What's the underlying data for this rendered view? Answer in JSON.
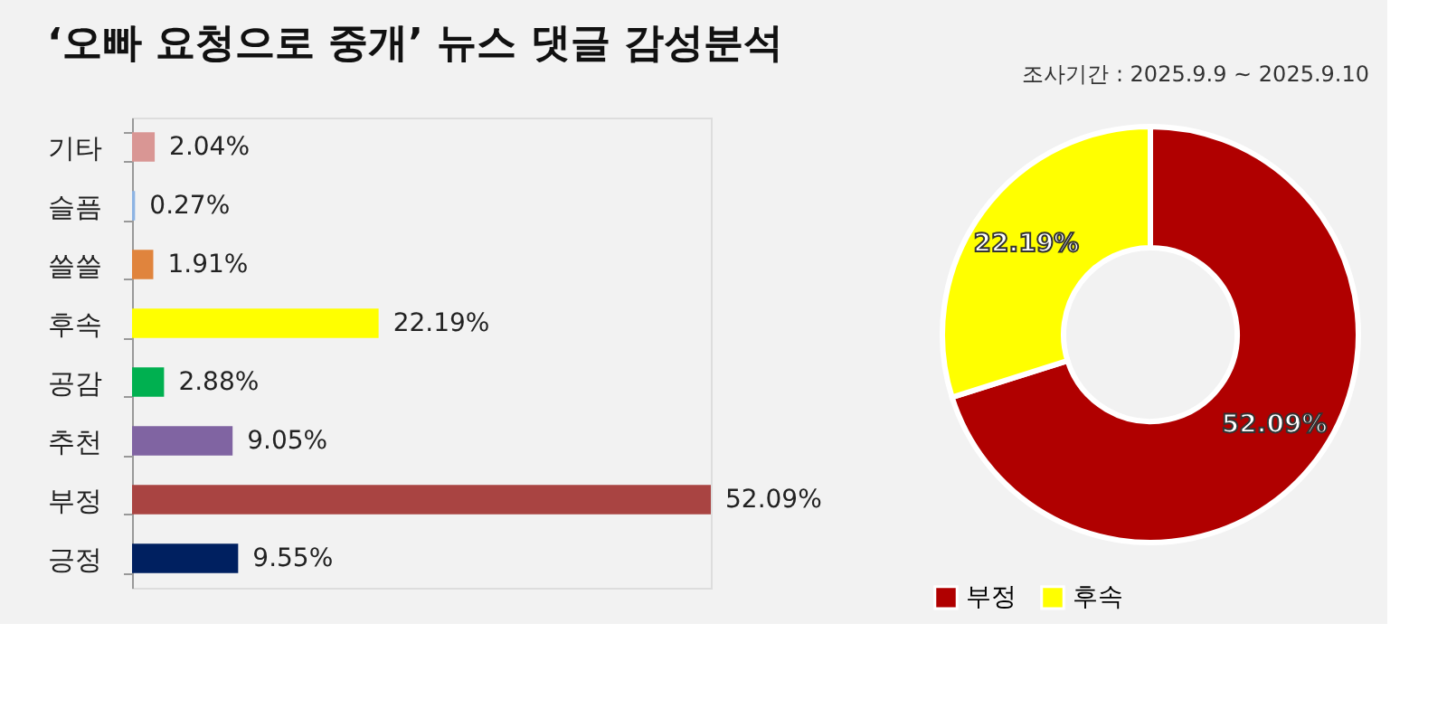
{
  "chart_data": [
    {
      "type": "bar",
      "orientation": "horizontal",
      "title": "‘오빠 요청으로 중개’ 뉴스 댓글 감성분석",
      "data_labels": true,
      "value_labels": [
        "2.04%",
        "0.27%",
        "1.91%",
        "22.19%",
        "2.88%",
        "9.05%",
        "52.09%",
        "9.55%"
      ],
      "categories": [
        "기타",
        "슬픔",
        "쓸쓸",
        "후속",
        "공감",
        "추천",
        "부정",
        "긍정"
      ],
      "values": [
        2.04,
        0.27,
        1.91,
        22.19,
        2.88,
        9.05,
        52.09,
        9.55
      ],
      "colors": [
        "#d99694",
        "#8eb4e3",
        "#e0843d",
        "#ffff00",
        "#00b050",
        "#8064a2",
        "#a94442",
        "#002060"
      ]
    },
    {
      "type": "donut",
      "annotations": [
        "조사기간 : 2025.9.9 ~ 2025.9.10"
      ],
      "data_labels": true,
      "value_labels": [
        "52.09%",
        "22.19%"
      ],
      "legend": "bottom",
      "categories": [
        "부정",
        "후속"
      ],
      "values": [
        52.09,
        22.19
      ],
      "colors": [
        "#b00000",
        "#ffff00"
      ]
    }
  ]
}
